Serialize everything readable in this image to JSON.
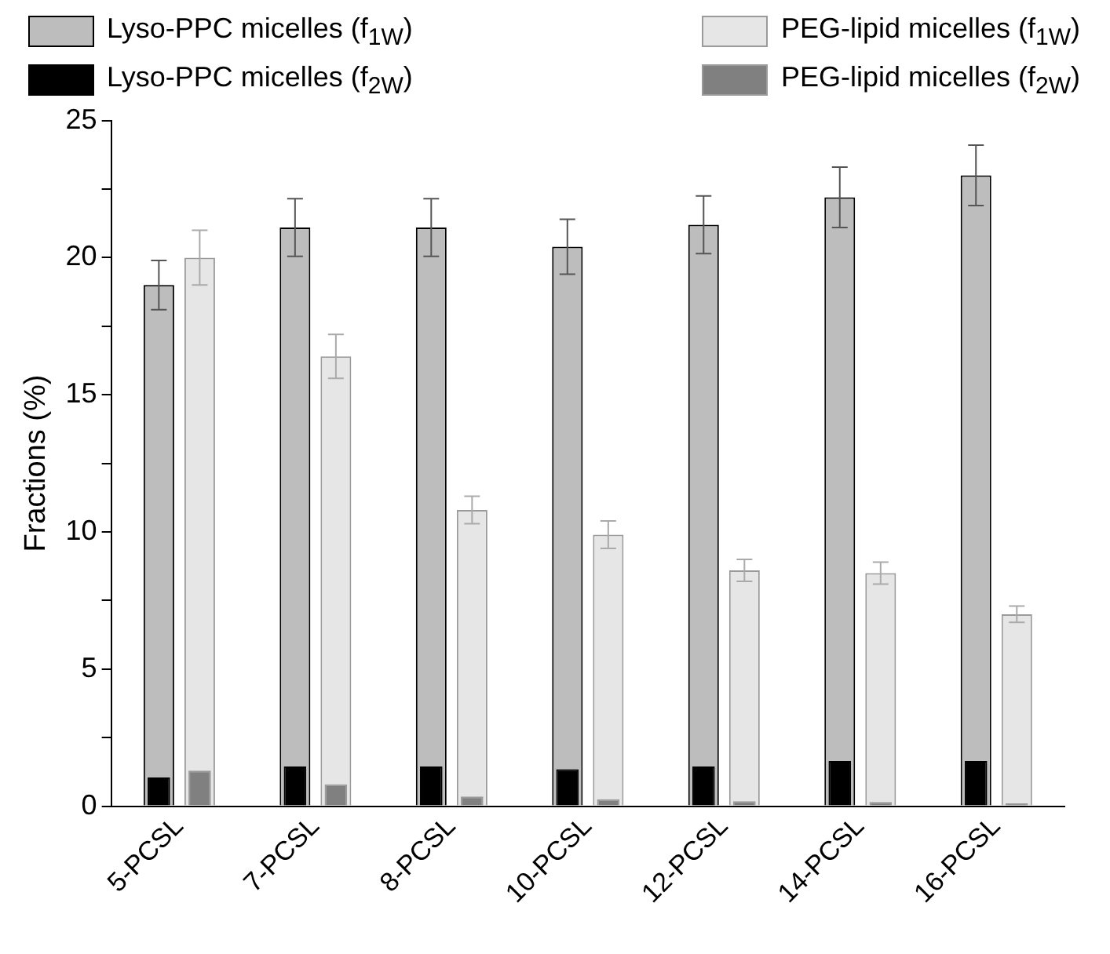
{
  "chart_data": {
    "type": "bar",
    "ylabel": "Fractions (%)",
    "categories": [
      "5-PCSL",
      "7-PCSL",
      "8-PCSL",
      "10-PCSL",
      "12-PCSL",
      "14-PCSL",
      "16-PCSL"
    ],
    "series": [
      {
        "name": "Lyso-PPC micelles (f$_{1W}$)",
        "color": "#bdbdbd",
        "values": [
          19.0,
          21.1,
          21.1,
          20.4,
          21.2,
          22.2,
          23.0
        ],
        "errors": [
          0.9,
          1.05,
          1.05,
          1.0,
          1.05,
          1.1,
          1.1
        ]
      },
      {
        "name": "PEG-lipid micelles (f$_{1W}$)",
        "color": "#e6e6e6",
        "values": [
          20.0,
          16.4,
          10.8,
          9.9,
          8.6,
          8.5,
          7.0
        ],
        "errors": [
          1.0,
          0.8,
          0.5,
          0.5,
          0.4,
          0.4,
          0.3
        ]
      },
      {
        "name": "Lyso-PPC micelles (f$_{2W}$)",
        "color": "#000000",
        "values": [
          1.05,
          1.45,
          1.45,
          1.35,
          1.45,
          1.65,
          1.65
        ]
      },
      {
        "name": "PEG-lipid micelles (f$_{2W}$)",
        "color": "#808080",
        "values": [
          1.3,
          0.8,
          0.35,
          0.25,
          0.18,
          0.15,
          0.1
        ]
      }
    ],
    "ylim": [
      0,
      25
    ],
    "yticks": [
      0,
      {
        "value": 2.5,
        "label": null
      },
      5,
      {
        "value": 7.5,
        "label": null
      },
      10,
      {
        "value": 12.5,
        "label": null
      },
      15,
      {
        "value": 17.5,
        "label": null
      },
      20,
      {
        "value": 22.5,
        "label": null
      },
      25
    ],
    "grid": false,
    "legend": "top"
  }
}
